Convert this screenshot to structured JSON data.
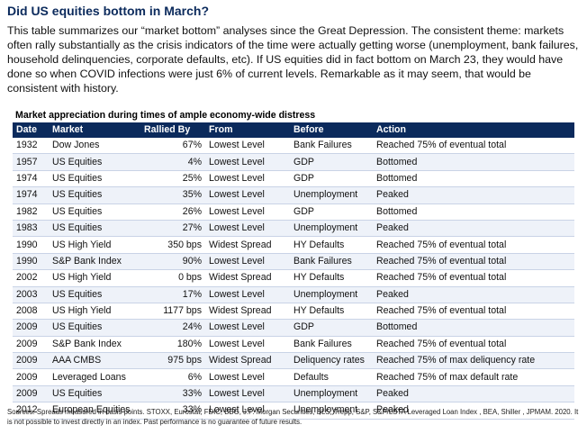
{
  "title": "Did US equities bottom in March?",
  "intro": "This table summarizes our “market bottom” analyses since the Great Depression.  The consistent theme: markets often rally substantially as the crisis indicators of the time were actually getting worse (unemployment, bank failures, household delinquencies, corporate defaults, etc).  If US equities did in fact bottom on March 23, they would have done so when COVID infections were just 6% of current levels.  Remarkable as it may seem, that would be consistent with history.",
  "table_caption": "Market appreciation during times of ample economy-wide distress",
  "headers": {
    "date": "Date",
    "market": "Market",
    "rallied": "Rallied By",
    "from": "From",
    "before": "Before",
    "action": "Action"
  },
  "rows": [
    {
      "date": "1932",
      "market": "Dow Jones",
      "rallied": "67%",
      "from": "Lowest Level",
      "before": "Bank Failures",
      "action": "Reached 75% of eventual total"
    },
    {
      "date": "1957",
      "market": "US Equities",
      "rallied": "4%",
      "from": "Lowest Level",
      "before": "GDP",
      "action": "Bottomed"
    },
    {
      "date": "1974",
      "market": "US Equities",
      "rallied": "25%",
      "from": "Lowest Level",
      "before": "GDP",
      "action": "Bottomed"
    },
    {
      "date": "1974",
      "market": "US Equities",
      "rallied": "35%",
      "from": "Lowest Level",
      "before": "Unemployment",
      "action": "Peaked"
    },
    {
      "date": "1982",
      "market": "US Equities",
      "rallied": "26%",
      "from": "Lowest Level",
      "before": "GDP",
      "action": "Bottomed"
    },
    {
      "date": "1983",
      "market": "US Equities",
      "rallied": "27%",
      "from": "Lowest Level",
      "before": "Unemployment",
      "action": "Peaked"
    },
    {
      "date": "1990",
      "market": "US High Yield",
      "rallied": "350 bps",
      "from": "Widest Spread",
      "before": "HY Defaults",
      "action": "Reached 75% of eventual total"
    },
    {
      "date": "1990",
      "market": "S&P Bank Index",
      "rallied": "90%",
      "from": "Lowest Level",
      "before": "Bank Failures",
      "action": "Reached 75% of eventual total"
    },
    {
      "date": "2002",
      "market": "US High Yield",
      "rallied": "0 bps",
      "from": "Widest Spread",
      "before": "HY Defaults",
      "action": "Reached 75% of eventual total"
    },
    {
      "date": "2003",
      "market": "US Equities",
      "rallied": "17%",
      "from": "Lowest Level",
      "before": "Unemployment",
      "action": "Peaked"
    },
    {
      "date": "2008",
      "market": "US High Yield",
      "rallied": "1177 bps",
      "from": "Widest Spread",
      "before": "HY Defaults",
      "action": "Reached 75% of eventual total"
    },
    {
      "date": "2009",
      "market": "US Equities",
      "rallied": "24%",
      "from": "Lowest Level",
      "before": "GDP",
      "action": "Bottomed"
    },
    {
      "date": "2009",
      "market": "S&P Bank Index",
      "rallied": "180%",
      "from": "Lowest Level",
      "before": "Bank Failures",
      "action": "Reached 75% of eventual total"
    },
    {
      "date": "2009",
      "market": "AAA CMBS",
      "rallied": "975 bps",
      "from": "Widest Spread",
      "before": "Deliquency rates",
      "action": "Reached 75% of max deliquency rate"
    },
    {
      "date": "2009",
      "market": "Leveraged Loans",
      "rallied": "6%",
      "from": "Lowest Level",
      "before": "Defaults",
      "action": "Reached 75% of max default rate"
    },
    {
      "date": "2009",
      "market": "US Equities",
      "rallied": "33%",
      "from": "Lowest Level",
      "before": "Unemployment",
      "action": "Peaked"
    },
    {
      "date": "2012",
      "market": "European Equities",
      "rallied": "33%",
      "from": "Lowest Level",
      "before": "Unemployment",
      "action": "Peaked"
    }
  ],
  "sources": "Sources: Spreads measured in basis points.  STOXX, Eurostat, FDIC, BBG, J.P. Morgan Securities, BLS, Trepp, S&P, S&P/LSTA Leveraged Loan Index , BEA, Shiller , JPMAM. 2020. It is not possible to invest directly in an index. Past performance is no guarantee of future results.",
  "colors": {
    "title": "#0b2a5c",
    "header_bg": "#0b2a5c",
    "stripe": "#eef2f9"
  }
}
